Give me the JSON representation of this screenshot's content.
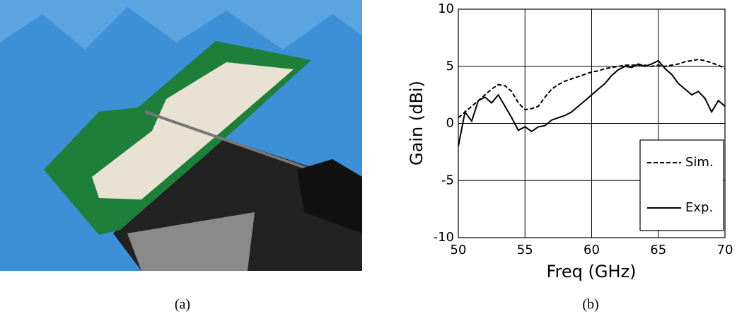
{
  "chart_data": {
    "type": "line",
    "x_label": "Freq (GHz)",
    "y_label": "Gain (dBi)",
    "x": [
      50,
      50.5,
      51,
      51.5,
      52,
      52.5,
      53,
      53.5,
      54,
      54.5,
      55,
      55.5,
      56,
      56.5,
      57,
      57.5,
      58,
      58.5,
      59,
      59.5,
      60,
      60.5,
      61,
      61.5,
      62,
      62.5,
      63,
      63.5,
      64,
      64.5,
      65,
      65.5,
      66,
      66.5,
      67,
      67.5,
      68,
      68.5,
      69,
      69.5,
      70
    ],
    "series": [
      {
        "name": "Sim.",
        "color": "#000000",
        "dash": true,
        "values": [
          0.5,
          1.0,
          1.5,
          2.0,
          2.5,
          3.0,
          3.4,
          3.3,
          2.8,
          1.8,
          1.2,
          1.3,
          1.5,
          2.3,
          3.0,
          3.4,
          3.7,
          3.9,
          4.1,
          4.3,
          4.5,
          4.6,
          4.8,
          4.9,
          5.0,
          5.1,
          5.1,
          5.1,
          5.1,
          5.0,
          5.1,
          5.0,
          5.1,
          5.2,
          5.4,
          5.5,
          5.6,
          5.5,
          5.3,
          5.1,
          4.8
        ]
      },
      {
        "name": "Exp.",
        "color": "#000000",
        "dash": false,
        "values": [
          -2.0,
          1.0,
          0.2,
          2.0,
          2.3,
          1.8,
          2.5,
          1.5,
          0.5,
          -0.6,
          -0.3,
          -0.7,
          -0.3,
          -0.2,
          0.3,
          0.5,
          0.7,
          1.0,
          1.5,
          2.0,
          2.5,
          3.0,
          3.5,
          4.2,
          4.7,
          5.0,
          4.9,
          5.2,
          5.0,
          5.2,
          5.5,
          4.8,
          4.3,
          3.5,
          3.0,
          2.5,
          2.8,
          2.2,
          1.0,
          2.0,
          1.5
        ]
      }
    ],
    "xlim": [
      50,
      70
    ],
    "ylim": [
      -10,
      10
    ],
    "xticks": [
      50,
      55,
      60,
      65,
      70
    ],
    "yticks": [
      -10,
      -5,
      0,
      5,
      10
    ],
    "grid": true,
    "legend": "lower right"
  },
  "captions": [
    "(a)",
    "(b)"
  ]
}
